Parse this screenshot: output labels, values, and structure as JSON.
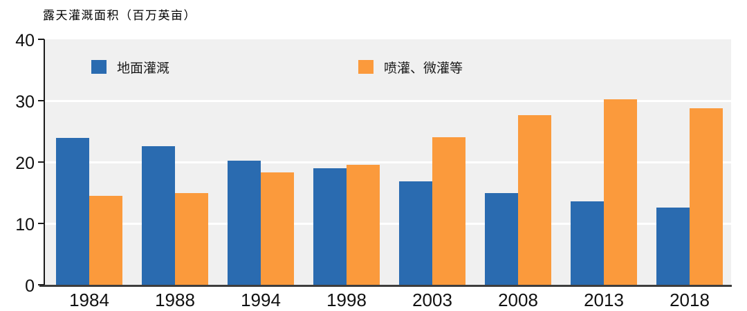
{
  "chart": {
    "title": "露天灌溉面积（百万英亩）"
  },
  "chart_data": {
    "type": "bar",
    "title": "露天灌溉面积（百万英亩）",
    "categories": [
      "1984",
      "1988",
      "1994",
      "1998",
      "2003",
      "2008",
      "2013",
      "2018"
    ],
    "series": [
      {
        "name": "地面灌溉",
        "color": "#2A6BB0",
        "values": [
          23.9,
          22.6,
          20.2,
          19.0,
          16.9,
          15.0,
          13.6,
          12.6
        ]
      },
      {
        "name": "喷灌、微灌等",
        "color": "#FB9A3C",
        "values": [
          14.5,
          15.0,
          18.3,
          19.5,
          24.1,
          27.6,
          30.2,
          28.8
        ]
      }
    ],
    "xlabel": "",
    "ylabel": "露天灌溉面积（百万英亩）",
    "ylim": [
      0,
      40
    ],
    "yticks": [
      0,
      10,
      20,
      30,
      40
    ],
    "grid": true,
    "gridlines": [
      10,
      20,
      30
    ],
    "legend_position": "top-inside",
    "colors": {
      "plot_background": "#F0F0F0",
      "gridline": "#FFFFFF",
      "y_axis": "#1A1A1A",
      "x_axis": "#3D3D3D",
      "text": "#111111"
    }
  }
}
